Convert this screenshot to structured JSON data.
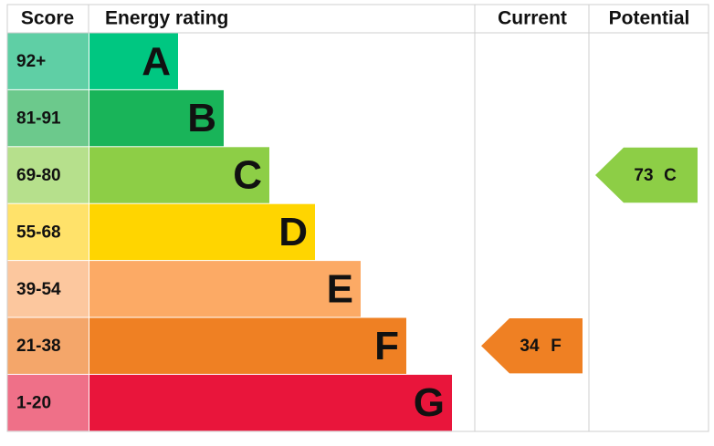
{
  "header": {
    "score": "Score",
    "rating": "Energy rating",
    "current": "Current",
    "potential": "Potential"
  },
  "bands": [
    {
      "score": "92+",
      "letter": "A",
      "color": "#00c781",
      "score_color": "#5fcfa5"
    },
    {
      "score": "81-91",
      "letter": "B",
      "color": "#19b459",
      "score_color": "#6cc98c"
    },
    {
      "score": "69-80",
      "letter": "C",
      "color": "#8dce46",
      "score_color": "#b6e08c"
    },
    {
      "score": "55-68",
      "letter": "D",
      "color": "#ffd500",
      "score_color": "#ffe26a"
    },
    {
      "score": "39-54",
      "letter": "E",
      "color": "#fcaa65",
      "score_color": "#fcc79e"
    },
    {
      "score": "21-38",
      "letter": "F",
      "color": "#ef8023",
      "score_color": "#f4a66a"
    },
    {
      "score": "1-20",
      "letter": "G",
      "color": "#e9153b",
      "score_color": "#ef7088"
    }
  ],
  "current": {
    "value": 34,
    "letter": "F"
  },
  "potential": {
    "value": 73,
    "letter": "C"
  }
}
